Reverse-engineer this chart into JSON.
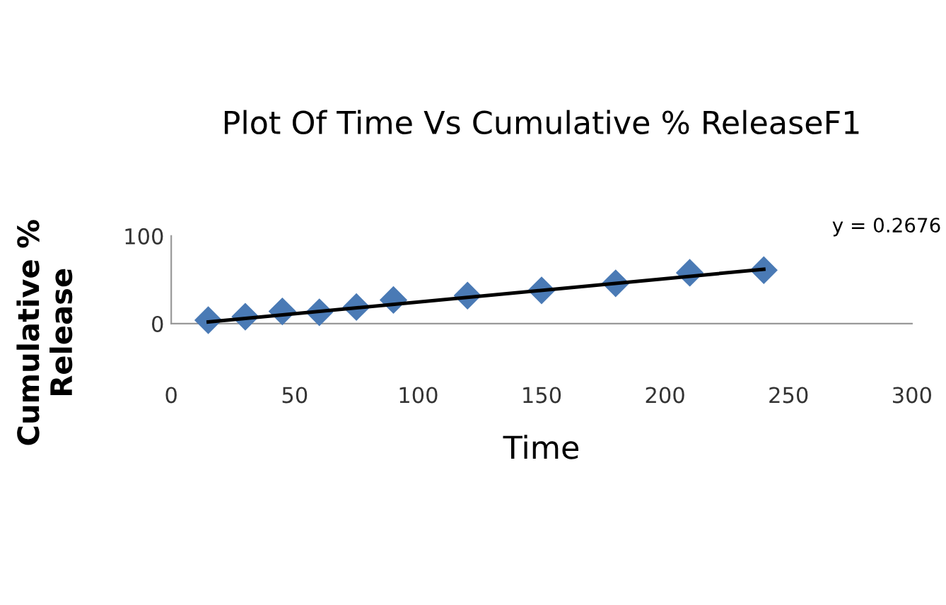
{
  "chart_data": {
    "type": "scatter",
    "title": "Plot Of Time Vs Cumulative % ReleaseF1",
    "xlabel": "Time",
    "ylabel": "Cumulative %\nRelease",
    "x": [
      15,
      30,
      45,
      60,
      75,
      90,
      120,
      150,
      180,
      210,
      240
    ],
    "series": [
      {
        "color": "#4a7ab5",
        "values": [
          4,
          8,
          14,
          13,
          19,
          27,
          32,
          38,
          46,
          58,
          61
        ],
        "marker": "diamond"
      },
      {
        "type": "line",
        "color": "#000000",
        "x": [
          15,
          240
        ],
        "values": [
          2,
          62
        ],
        "marker": "none"
      }
    ],
    "xlim": [
      0,
      300
    ],
    "xticks": [
      0,
      50,
      100,
      150,
      200,
      250,
      300
    ],
    "ylim": [
      0,
      100
    ],
    "yticks": [
      0,
      100
    ],
    "grid": false,
    "legend": false,
    "annotations": [
      "y = 0.2676"
    ]
  }
}
